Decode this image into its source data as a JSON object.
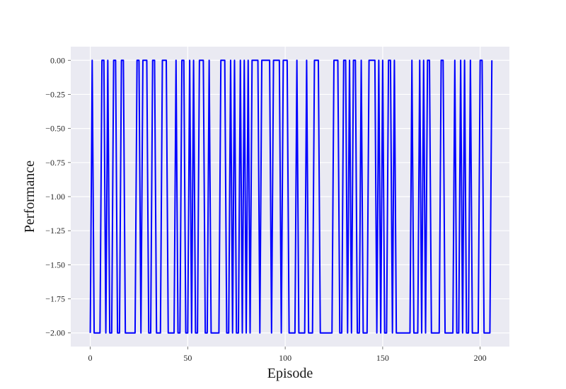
{
  "chart_data": {
    "type": "line",
    "title": "",
    "xlabel": "Episode",
    "ylabel": "Performance",
    "xlim": [
      -10,
      215
    ],
    "ylim": [
      -2.1,
      0.1
    ],
    "x_ticks": [
      0,
      50,
      100,
      150,
      200
    ],
    "x_tick_labels": [
      "0",
      "50",
      "100",
      "150",
      "200"
    ],
    "y_ticks": [
      0.0,
      -0.25,
      -0.5,
      -0.75,
      -1.0,
      -1.25,
      -1.5,
      -1.75,
      -2.0
    ],
    "y_tick_labels": [
      "0.00",
      "−0.25",
      "−0.50",
      "−0.75",
      "−1.00",
      "−1.25",
      "−1.50",
      "−1.75",
      "−2.00"
    ],
    "grid": true,
    "legend": "none",
    "series": [
      {
        "color": "#0000ff",
        "x_start": 0,
        "values": [
          -2,
          0,
          -2,
          -2,
          -2,
          -2,
          0,
          0,
          -2,
          0,
          -2,
          -2,
          0,
          0,
          -2,
          -2,
          0,
          0,
          -2,
          -2,
          -2,
          -2,
          -2,
          -2,
          0,
          0,
          -2,
          0,
          0,
          0,
          -2,
          -2,
          0,
          0,
          -2,
          -2,
          -2,
          0,
          0,
          0,
          -2,
          -2,
          -2,
          -2,
          0,
          -2,
          -2,
          0,
          0,
          -2,
          -2,
          0,
          -2,
          0,
          -2,
          -2,
          0,
          0,
          0,
          -2,
          -2,
          0,
          -2,
          -2,
          -2,
          -2,
          -2,
          0,
          0,
          0,
          -2,
          -2,
          0,
          -2,
          0,
          -2,
          -2,
          0,
          -2,
          0,
          -2,
          0,
          -2,
          0,
          0,
          0,
          0,
          -2,
          0,
          0,
          0,
          0,
          0,
          -2,
          0,
          0,
          0,
          0,
          -2,
          0,
          0,
          0,
          -2,
          -2,
          -2,
          -2,
          0,
          -2,
          -2,
          -2,
          -2,
          0,
          -2,
          -2,
          -2,
          0,
          0,
          0,
          -2,
          -2,
          -2,
          -2,
          -2,
          -2,
          -2,
          0,
          0,
          0,
          -2,
          -2,
          0,
          0,
          -2,
          0,
          -2,
          0,
          0,
          -2,
          -2,
          0,
          -2,
          -2,
          -2,
          0,
          0,
          0,
          0,
          -2,
          0,
          -2,
          0,
          -2,
          -2,
          0,
          0,
          -2,
          0,
          -2,
          -2,
          -2,
          -2,
          -2,
          -2,
          -2,
          -2,
          0,
          -2,
          -2,
          -2,
          0,
          -2,
          0,
          -2,
          0,
          0,
          -2,
          -2,
          -2,
          -2,
          -2,
          0,
          0,
          -2,
          -2,
          -2,
          -2,
          -2,
          0,
          -2,
          -2,
          0,
          -2,
          0,
          -2,
          -2,
          0,
          -2,
          -2,
          -2,
          -2,
          0,
          0,
          -2,
          -2,
          -2,
          -2,
          0
        ]
      }
    ]
  }
}
